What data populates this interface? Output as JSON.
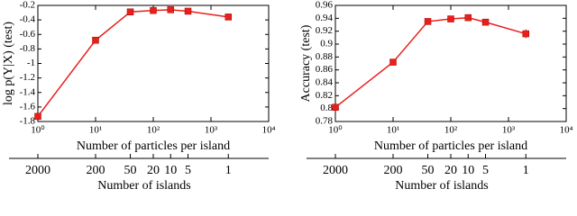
{
  "chart_data": [
    {
      "type": "line",
      "ylabel": "log p(Y|X) (test)",
      "xlabel": "Number of particles per island",
      "x2label": "Number of islands",
      "xscale": "log",
      "color": "#e8201c",
      "x": [
        1,
        10,
        40,
        100,
        200,
        400,
        2000
      ],
      "values": [
        -1.73,
        -0.68,
        -0.29,
        -0.27,
        -0.26,
        -0.28,
        -0.36
      ],
      "errors": [
        0.01,
        0.01,
        0.01,
        0.01,
        0.01,
        0.01,
        0.015
      ],
      "xlim": [
        1,
        10000
      ],
      "xticks": [
        {
          "value": 1,
          "label": "10⁰"
        },
        {
          "value": 10,
          "label": "10¹"
        },
        {
          "value": 100,
          "label": "10²"
        },
        {
          "value": 1000,
          "label": "10³"
        },
        {
          "value": 10000,
          "label": "10⁴"
        }
      ],
      "ylim": [
        -1.8,
        -0.2
      ],
      "yticks": [
        -1.8,
        -1.6,
        -1.4,
        -1.2,
        -1,
        -0.8,
        -0.6,
        -0.4,
        -0.2
      ],
      "x2lim": [
        2000,
        0.2
      ],
      "x2ticks": [
        2000,
        200,
        50,
        20,
        10,
        5,
        1
      ]
    },
    {
      "type": "line",
      "ylabel": "Accuracy (test)",
      "xlabel": "Number of particles per island",
      "x2label": "Number of islands",
      "xscale": "log",
      "color": "#e8201c",
      "x": [
        1,
        10,
        40,
        100,
        200,
        400,
        2000
      ],
      "values": [
        0.802,
        0.872,
        0.935,
        0.939,
        0.941,
        0.934,
        0.916
      ],
      "errors": [
        0.002,
        0.003,
        0.002,
        0.002,
        0.003,
        0.003,
        0.007
      ],
      "xlim": [
        1,
        10000
      ],
      "xticks": [
        {
          "value": 1,
          "label": "10⁰"
        },
        {
          "value": 10,
          "label": "10¹"
        },
        {
          "value": 100,
          "label": "10²"
        },
        {
          "value": 1000,
          "label": "10³"
        },
        {
          "value": 10000,
          "label": "10⁴"
        }
      ],
      "ylim": [
        0.78,
        0.96
      ],
      "yticks": [
        0.78,
        0.8,
        0.82,
        0.84,
        0.86,
        0.88,
        0.9,
        0.92,
        0.94,
        0.96
      ],
      "x2lim": [
        2000,
        0.2
      ],
      "x2ticks": [
        2000,
        200,
        50,
        20,
        10,
        5,
        1
      ]
    }
  ]
}
